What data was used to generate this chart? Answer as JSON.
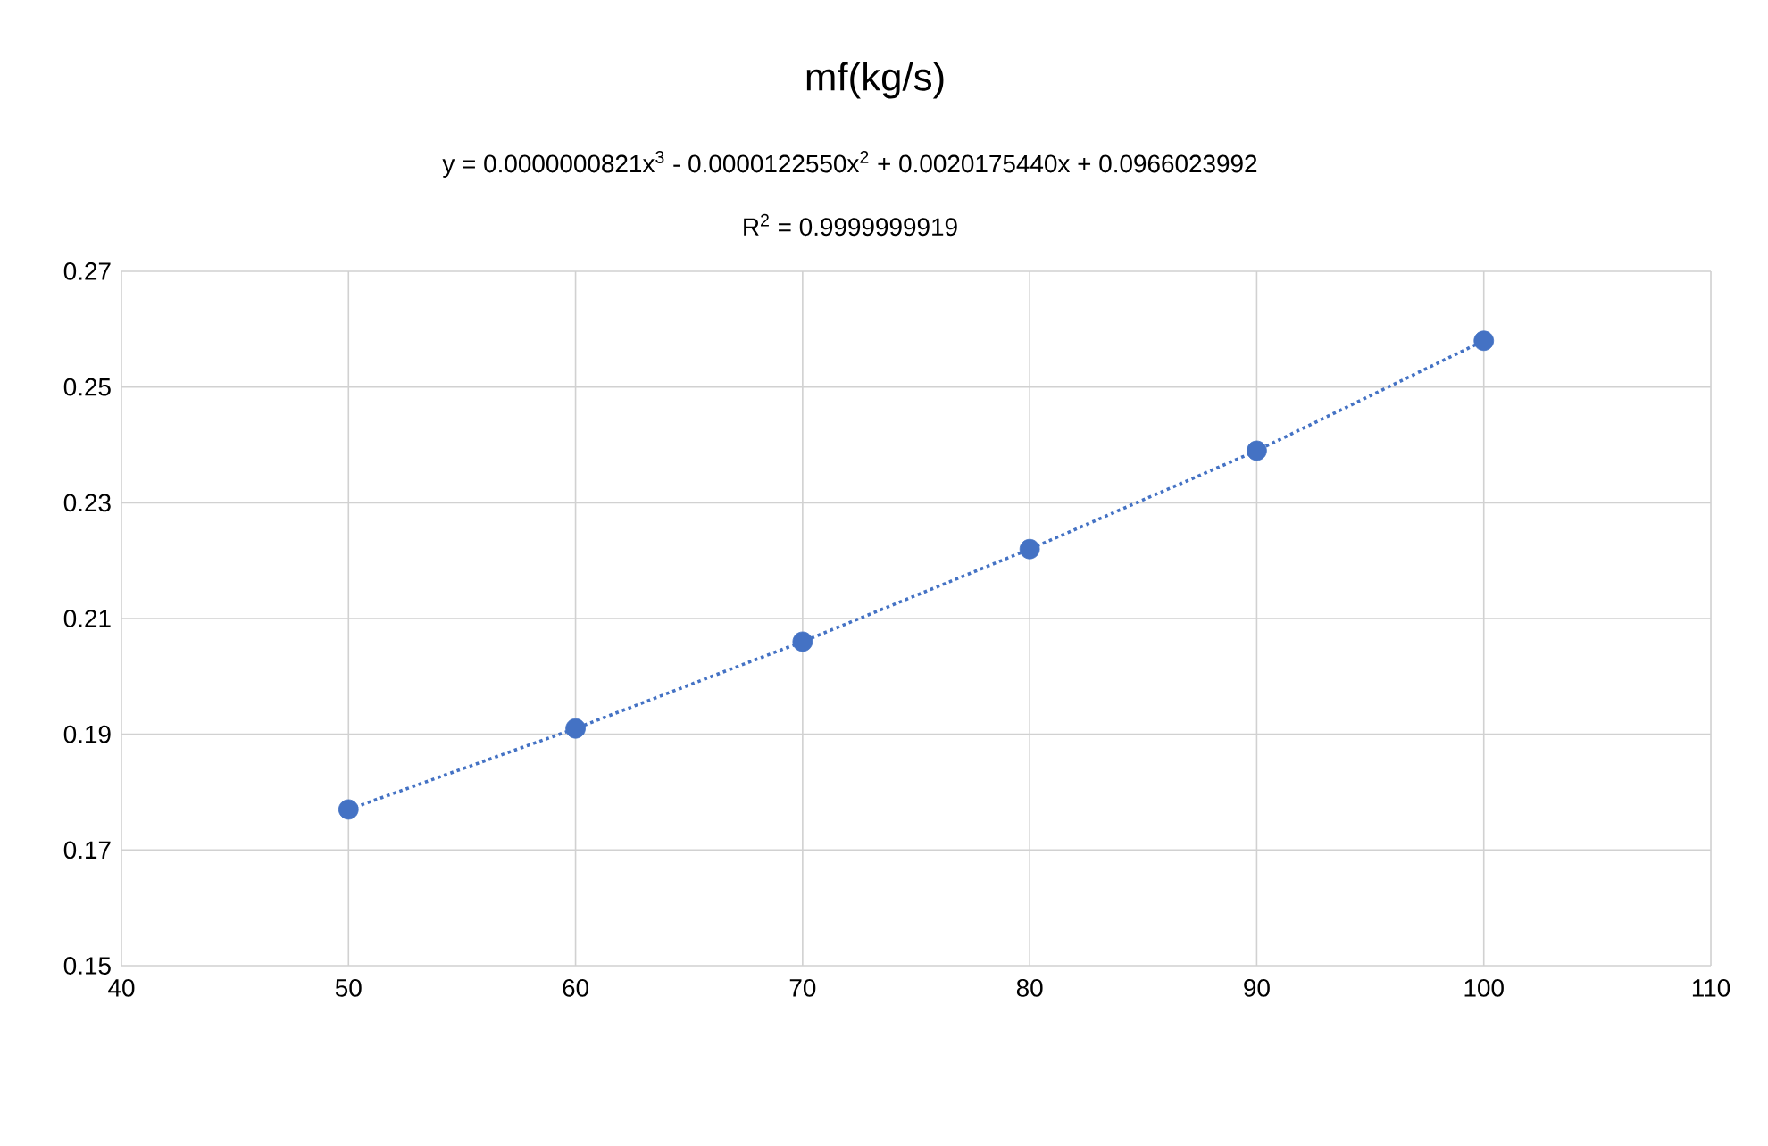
{
  "chart_data": {
    "type": "scatter",
    "title": "mf(kg/s)",
    "annotations": [
      "y = 0.0000000821x$^{3}$ - 0.0000122550x$^{2}$ + 0.0020175440x + 0.0966023992",
      "R$^{2}$ = 0.9999999919"
    ],
    "x": [
      50,
      60,
      70,
      80,
      90,
      100
    ],
    "series": [
      {
        "color": "#4472c4",
        "marker": "circle",
        "values": [
          0.177,
          0.191,
          0.206,
          0.222,
          0.239,
          0.258
        ]
      },
      {
        "type": "line",
        "color": "#4472c4",
        "line_style": "dotted",
        "x": [
          50,
          60,
          70,
          80,
          90,
          100
        ],
        "values": [
          0.177,
          0.191,
          0.206,
          0.222,
          0.239,
          0.258
        ]
      }
    ],
    "xlim": [
      40,
      110
    ],
    "xticks": [
      40,
      50,
      60,
      70,
      80,
      90,
      100,
      110
    ],
    "ylim": [
      0.15,
      0.27
    ],
    "yticks": [
      0.15,
      0.17,
      0.19,
      0.21,
      0.23,
      0.25,
      0.27
    ],
    "grid": true
  }
}
